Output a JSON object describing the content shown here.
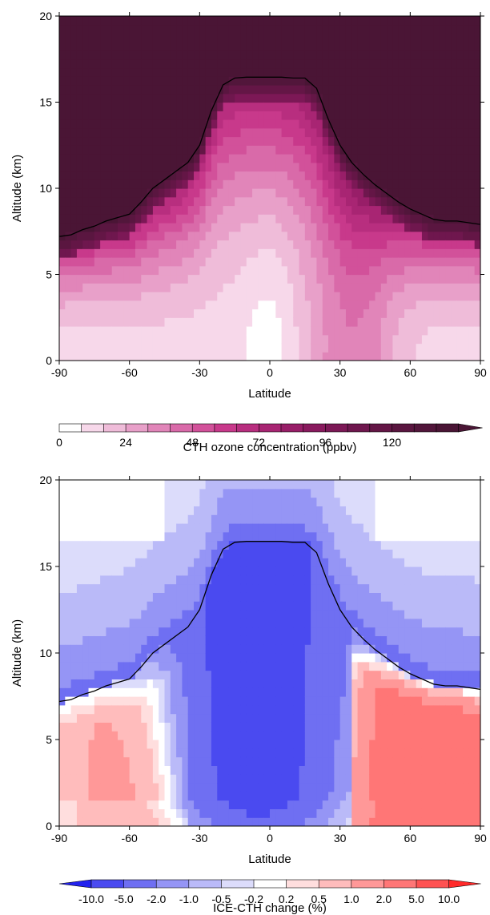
{
  "chart_data": [
    {
      "type": "heatmap",
      "xlabel": "Latitude",
      "ylabel": "Altitude (km)",
      "xlim": [
        -90,
        90
      ],
      "ylim": [
        0,
        20
      ],
      "x_ticks": [
        "-90",
        "-60",
        "-30",
        "0",
        "30",
        "60",
        "90"
      ],
      "y_ticks": [
        "0",
        "5",
        "10",
        "15",
        "20"
      ],
      "colorbar": {
        "label": "CTH ozone concentration (ppbv)",
        "tick_labels": [
          "0",
          "24",
          "48",
          "72",
          "96",
          "120"
        ],
        "tick_values": [
          0,
          24,
          48,
          72,
          96,
          120
        ],
        "boundaries": [
          0,
          8,
          16,
          24,
          32,
          40,
          48,
          56,
          64,
          72,
          80,
          88,
          96,
          104,
          112,
          120,
          128,
          136,
          144
        ],
        "colors": [
          "#ffffff",
          "#f7d8ea",
          "#efbcd9",
          "#e8a0c9",
          "#e185b9",
          "#d96aa9",
          "#d2519a",
          "#c8398b",
          "#b82e7f",
          "#a82573",
          "#981e68",
          "#891a5e",
          "#7c1856",
          "#6f174e",
          "#641646",
          "#5a1640",
          "#52163b",
          "#4a1535"
        ],
        "extend": "max"
      },
      "tropopause_height": {
        "lat": [
          -90,
          -85,
          -80,
          -75,
          -70,
          -65,
          -60,
          -55,
          -50,
          -45,
          -40,
          -35,
          -30,
          -25,
          -20,
          -15,
          -10,
          -5,
          0,
          5,
          10,
          15,
          20,
          25,
          30,
          35,
          40,
          45,
          50,
          55,
          60,
          65,
          70,
          75,
          80,
          85,
          90
        ],
        "alt": [
          7.2,
          7.3,
          7.6,
          7.8,
          8.1,
          8.3,
          8.5,
          9.2,
          10.0,
          10.5,
          11.0,
          11.5,
          12.5,
          14.5,
          16.0,
          16.4,
          16.45,
          16.45,
          16.45,
          16.45,
          16.4,
          16.4,
          15.8,
          14.0,
          12.5,
          11.5,
          10.8,
          10.2,
          9.7,
          9.2,
          8.8,
          8.5,
          8.2,
          8.1,
          8.1,
          8.0,
          7.9
        ]
      },
      "field": {
        "description_levels": "ozone colour class index per latitude/altitude",
        "lat_step": 5,
        "alt_step": 0.5
      }
    },
    {
      "type": "heatmap",
      "xlabel": "Latitude",
      "ylabel": "Altitude (km)",
      "xlim": [
        -90,
        90
      ],
      "ylim": [
        0,
        20
      ],
      "x_ticks": [
        "-90",
        "-60",
        "-30",
        "0",
        "30",
        "60",
        "90"
      ],
      "y_ticks": [
        "0",
        "5",
        "10",
        "15",
        "20"
      ],
      "colorbar": {
        "label": "ICE-CTH change (%)",
        "tick_labels": [
          "-10.0",
          "-5.0",
          "-2.0",
          "-1.0",
          "-0.5",
          "-0.2",
          "0.2",
          "0.5",
          "1.0",
          "2.0",
          "5.0",
          "10.0"
        ],
        "colors": [
          "#2222ee",
          "#4a4af0",
          "#6f6ff2",
          "#9595f5",
          "#babaf8",
          "#dcdcfb",
          "#ffffff",
          "#ffdede",
          "#ffbcbc",
          "#ff9898",
          "#ff7676",
          "#ff5252",
          "#ff2a2a"
        ],
        "extend": "both"
      },
      "tropopause_height": {
        "lat": [
          -90,
          -85,
          -80,
          -75,
          -70,
          -65,
          -60,
          -55,
          -50,
          -45,
          -40,
          -35,
          -30,
          -25,
          -20,
          -15,
          -10,
          -5,
          0,
          5,
          10,
          15,
          20,
          25,
          30,
          35,
          40,
          45,
          50,
          55,
          60,
          65,
          70,
          75,
          80,
          85,
          90
        ],
        "alt": [
          7.2,
          7.3,
          7.6,
          7.8,
          8.1,
          8.3,
          8.5,
          9.2,
          10.0,
          10.5,
          11.0,
          11.5,
          12.5,
          14.5,
          16.0,
          16.4,
          16.45,
          16.45,
          16.45,
          16.45,
          16.4,
          16.4,
          15.8,
          14.0,
          12.5,
          11.5,
          10.8,
          10.2,
          9.7,
          9.2,
          8.8,
          8.5,
          8.2,
          8.1,
          8.1,
          8.0,
          7.9
        ]
      }
    }
  ]
}
